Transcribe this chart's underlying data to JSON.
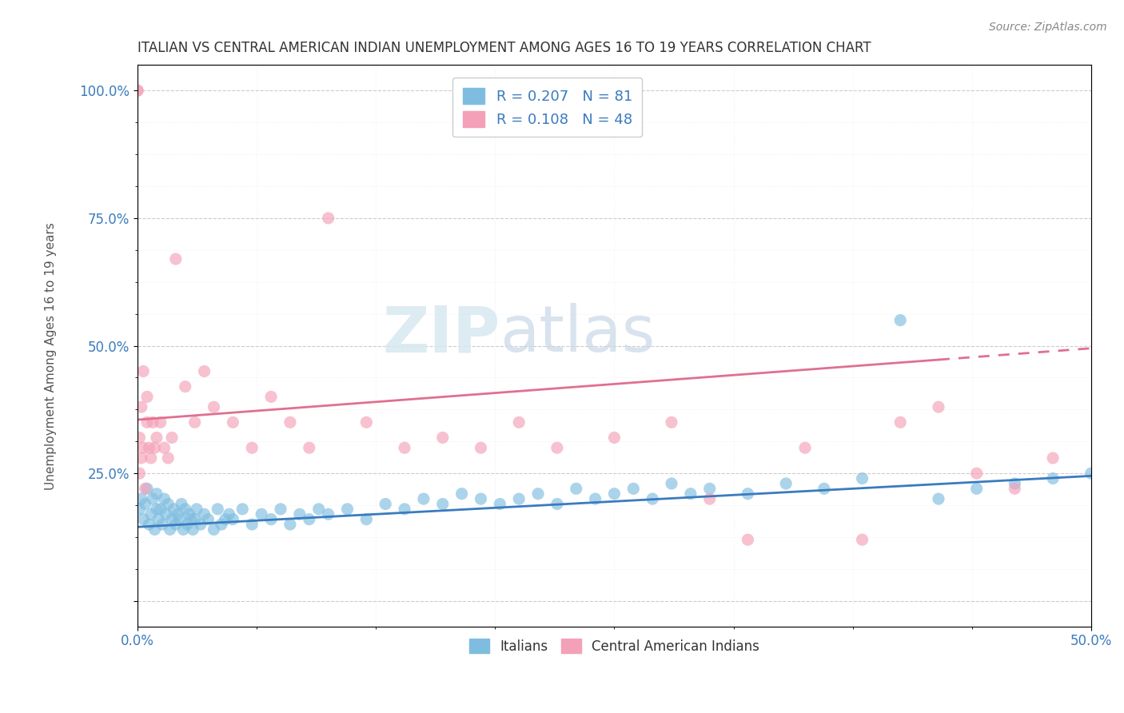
{
  "title": "ITALIAN VS CENTRAL AMERICAN INDIAN UNEMPLOYMENT AMONG AGES 16 TO 19 YEARS CORRELATION CHART",
  "source": "Source: ZipAtlas.com",
  "blue_color": "#7fbde0",
  "pink_color": "#f4a0b8",
  "blue_line_color": "#3a7bbf",
  "pink_line_color": "#e07090",
  "watermark_zip": "ZIP",
  "watermark_atlas": "atlas",
  "xlim": [
    0.0,
    0.5
  ],
  "ylim": [
    -0.05,
    1.05
  ],
  "blue_trend_y0": 0.145,
  "blue_trend_y1": 0.245,
  "pink_trend_y0": 0.355,
  "pink_trend_y1": 0.495,
  "ytick_vals": [
    0.0,
    0.25,
    0.5,
    0.75,
    1.0
  ],
  "ytick_labels": [
    "",
    "25.0%",
    "50.0%",
    "75.0%",
    "100.0%"
  ],
  "xtick_vals": [
    0.0,
    0.5
  ],
  "xtick_labels": [
    "0.0%",
    "50.0%"
  ],
  "ylabel": "Unemployment Among Ages 16 to 19 years",
  "legend1_r1": "R = 0.207",
  "legend1_n1": "N = 81",
  "legend1_r2": "R = 0.108",
  "legend1_n2": "N = 48",
  "legend2_labels": [
    "Italians",
    "Central American Indians"
  ],
  "blue_x": [
    0.001,
    0.002,
    0.003,
    0.004,
    0.005,
    0.006,
    0.007,
    0.008,
    0.009,
    0.01,
    0.01,
    0.011,
    0.012,
    0.013,
    0.014,
    0.015,
    0.016,
    0.017,
    0.018,
    0.019,
    0.02,
    0.021,
    0.022,
    0.023,
    0.024,
    0.025,
    0.026,
    0.027,
    0.028,
    0.029,
    0.03,
    0.031,
    0.033,
    0.035,
    0.037,
    0.04,
    0.042,
    0.044,
    0.046,
    0.048,
    0.05,
    0.055,
    0.06,
    0.065,
    0.07,
    0.075,
    0.08,
    0.085,
    0.09,
    0.095,
    0.1,
    0.11,
    0.12,
    0.13,
    0.14,
    0.15,
    0.16,
    0.17,
    0.18,
    0.19,
    0.2,
    0.21,
    0.22,
    0.23,
    0.24,
    0.25,
    0.26,
    0.27,
    0.28,
    0.29,
    0.3,
    0.32,
    0.34,
    0.36,
    0.38,
    0.4,
    0.42,
    0.44,
    0.46,
    0.48,
    0.5
  ],
  "blue_y": [
    0.18,
    0.2,
    0.16,
    0.19,
    0.22,
    0.15,
    0.17,
    0.2,
    0.14,
    0.18,
    0.21,
    0.16,
    0.18,
    0.15,
    0.2,
    0.17,
    0.19,
    0.14,
    0.16,
    0.18,
    0.15,
    0.17,
    0.16,
    0.19,
    0.14,
    0.18,
    0.15,
    0.17,
    0.16,
    0.14,
    0.16,
    0.18,
    0.15,
    0.17,
    0.16,
    0.14,
    0.18,
    0.15,
    0.16,
    0.17,
    0.16,
    0.18,
    0.15,
    0.17,
    0.16,
    0.18,
    0.15,
    0.17,
    0.16,
    0.18,
    0.17,
    0.18,
    0.16,
    0.19,
    0.18,
    0.2,
    0.19,
    0.21,
    0.2,
    0.19,
    0.2,
    0.21,
    0.19,
    0.22,
    0.2,
    0.21,
    0.22,
    0.2,
    0.23,
    0.21,
    0.22,
    0.21,
    0.23,
    0.22,
    0.24,
    0.55,
    0.2,
    0.22,
    0.23,
    0.24,
    0.25
  ],
  "pink_x": [
    0.0,
    0.0,
    0.001,
    0.001,
    0.002,
    0.002,
    0.003,
    0.003,
    0.004,
    0.005,
    0.005,
    0.006,
    0.007,
    0.008,
    0.009,
    0.01,
    0.012,
    0.014,
    0.016,
    0.018,
    0.02,
    0.025,
    0.03,
    0.035,
    0.04,
    0.05,
    0.06,
    0.07,
    0.08,
    0.09,
    0.1,
    0.12,
    0.14,
    0.16,
    0.18,
    0.2,
    0.22,
    0.25,
    0.28,
    0.3,
    0.32,
    0.35,
    0.38,
    0.4,
    0.42,
    0.44,
    0.46,
    0.48
  ],
  "pink_y": [
    1.0,
    1.0,
    0.25,
    0.32,
    0.28,
    0.38,
    0.3,
    0.45,
    0.22,
    0.35,
    0.4,
    0.3,
    0.28,
    0.35,
    0.3,
    0.32,
    0.35,
    0.3,
    0.28,
    0.32,
    0.67,
    0.42,
    0.35,
    0.45,
    0.38,
    0.35,
    0.3,
    0.4,
    0.35,
    0.3,
    0.75,
    0.35,
    0.3,
    0.32,
    0.3,
    0.35,
    0.3,
    0.32,
    0.35,
    0.2,
    0.12,
    0.3,
    0.12,
    0.35,
    0.38,
    0.25,
    0.22,
    0.28
  ]
}
